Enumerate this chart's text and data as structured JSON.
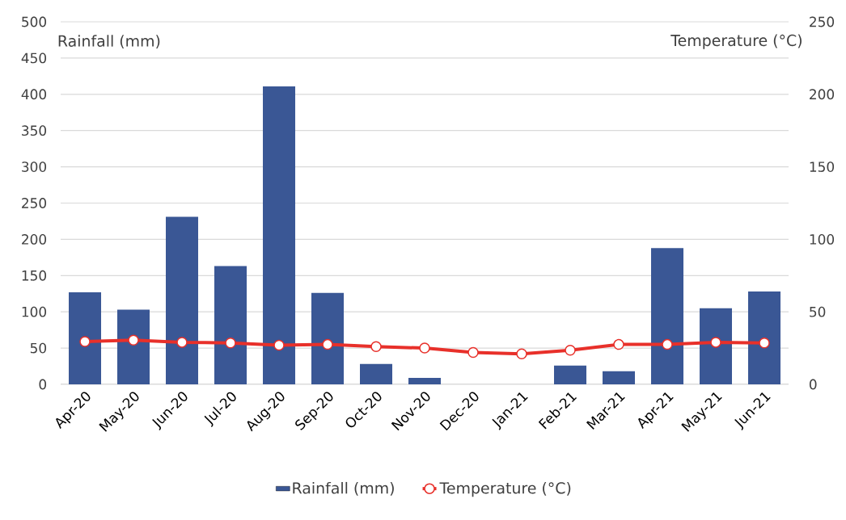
{
  "chart_data": {
    "type": "bar",
    "ylabel": "Rainfall (mm)",
    "y2label": "Temperature (°C)",
    "categories": [
      "Apr-20",
      "May-20",
      "Jun-20",
      "Jul-20",
      "Aug-20",
      "Sep-20",
      "Oct-20",
      "Nov-20",
      "Dec-20",
      "Jan-21",
      "Feb-21",
      "Mar-21",
      "Apr-21",
      "May-21",
      "Jun-21"
    ],
    "series": [
      {
        "name": "Rainfall (mm)",
        "color": "#3a5795",
        "values": [
          127,
          103,
          231,
          163,
          411,
          126,
          28,
          9,
          0,
          0,
          26,
          18,
          188,
          105,
          128
        ]
      },
      {
        "name": "Temperature (°C)",
        "type": "line",
        "axis": "y2",
        "color": "#e8302a",
        "values": [
          29.5,
          30.5,
          29,
          28.5,
          27,
          27.5,
          26,
          25,
          22,
          21,
          23.5,
          27.5,
          27.5,
          29,
          28.5
        ]
      }
    ],
    "ylim": [
      0,
      500
    ],
    "yticks": [
      0,
      50,
      100,
      150,
      200,
      250,
      300,
      350,
      400,
      450,
      500
    ],
    "y2lim": [
      0,
      250
    ],
    "y2ticks": [
      0,
      50,
      100,
      150,
      200,
      250
    ],
    "grid": "y",
    "legend": "bottom",
    "marker": "circle",
    "line_style": "solid"
  }
}
